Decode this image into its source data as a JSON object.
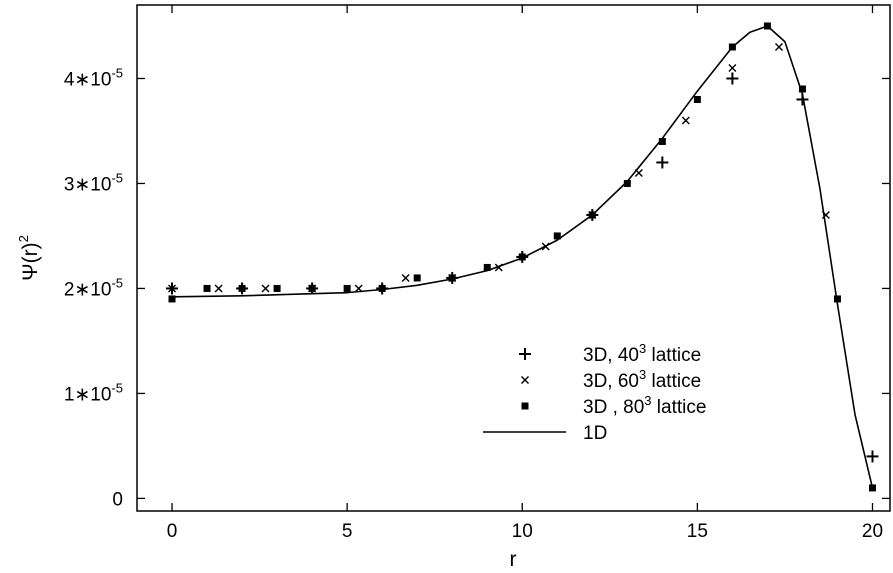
{
  "chart_data": {
    "type": "scatter",
    "title": "",
    "xlabel": "r",
    "ylabel": {
      "base": "Ψ(r)",
      "exp": "2"
    },
    "xlim": [
      -1,
      20.5
    ],
    "ylim": [
      -1.2e-06,
      4.7e-05
    ],
    "grid": false,
    "legend_position": "lower-center-right",
    "x_ticks": [
      {
        "value": 0,
        "label": "0"
      },
      {
        "value": 5,
        "label": "5"
      },
      {
        "value": 10,
        "label": "10"
      },
      {
        "value": 15,
        "label": "15"
      },
      {
        "value": 20,
        "label": "20"
      }
    ],
    "y_ticks": [
      {
        "value": 0,
        "label": "0"
      },
      {
        "value": 1e-05,
        "base": "1∗10",
        "exp": "-5"
      },
      {
        "value": 2e-05,
        "base": "2∗10",
        "exp": "-5"
      },
      {
        "value": 3e-05,
        "base": "3∗10",
        "exp": "-5"
      },
      {
        "value": 4e-05,
        "base": "4∗10",
        "exp": "-5"
      }
    ],
    "series": [
      {
        "name": "3D, 40^3 lattice",
        "label_parts": {
          "pre": "3D, 40",
          "sup": "3",
          "post": " lattice"
        },
        "marker": "plus",
        "points": [
          [
            0,
            2e-05
          ],
          [
            2,
            2e-05
          ],
          [
            4,
            2e-05
          ],
          [
            6,
            2e-05
          ],
          [
            8,
            2.1e-05
          ],
          [
            10,
            2.3e-05
          ],
          [
            12,
            2.7e-05
          ],
          [
            14,
            3.2e-05
          ],
          [
            16,
            4e-05
          ],
          [
            18,
            3.8e-05
          ],
          [
            20,
            4e-06
          ]
        ]
      },
      {
        "name": "3D, 60^3 lattice",
        "label_parts": {
          "pre": "3D, 60",
          "sup": "3",
          "post": " lattice"
        },
        "marker": "cross",
        "points": [
          [
            0,
            2e-05
          ],
          [
            1.33,
            2e-05
          ],
          [
            2.67,
            2e-05
          ],
          [
            4,
            2e-05
          ],
          [
            5.33,
            2e-05
          ],
          [
            6.67,
            2.1e-05
          ],
          [
            8,
            2.1e-05
          ],
          [
            9.33,
            2.2e-05
          ],
          [
            10.67,
            2.4e-05
          ],
          [
            12,
            2.7e-05
          ],
          [
            13.33,
            3.1e-05
          ],
          [
            14.67,
            3.6e-05
          ],
          [
            16,
            4.1e-05
          ],
          [
            17.33,
            4.3e-05
          ],
          [
            18.67,
            2.7e-05
          ]
        ]
      },
      {
        "name": "3D , 80^3 lattice",
        "label_parts": {
          "pre": "3D , 80",
          "sup": "3",
          "post": " lattice"
        },
        "marker": "square",
        "points": [
          [
            0,
            1.9e-05
          ],
          [
            1,
            2e-05
          ],
          [
            2,
            2e-05
          ],
          [
            3,
            2e-05
          ],
          [
            4,
            2e-05
          ],
          [
            5,
            2e-05
          ],
          [
            6,
            2e-05
          ],
          [
            7,
            2.1e-05
          ],
          [
            8,
            2.1e-05
          ],
          [
            9,
            2.2e-05
          ],
          [
            10,
            2.3e-05
          ],
          [
            11,
            2.5e-05
          ],
          [
            12,
            2.7e-05
          ],
          [
            13,
            3e-05
          ],
          [
            14,
            3.4e-05
          ],
          [
            15,
            3.8e-05
          ],
          [
            16,
            4.3e-05
          ],
          [
            17,
            4.5e-05
          ],
          [
            18,
            3.9e-05
          ],
          [
            19,
            1.9e-05
          ],
          [
            20,
            1e-06
          ]
        ]
      },
      {
        "name": "1D",
        "label_parts": {
          "pre": "1D",
          "sup": "",
          "post": ""
        },
        "marker": "line",
        "points": [
          [
            0,
            1.92e-05
          ],
          [
            2,
            1.93e-05
          ],
          [
            4,
            1.95e-05
          ],
          [
            5,
            1.96e-05
          ],
          [
            6,
            1.99e-05
          ],
          [
            7,
            2.03e-05
          ],
          [
            8,
            2.09e-05
          ],
          [
            9,
            2.17e-05
          ],
          [
            10,
            2.29e-05
          ],
          [
            11,
            2.46e-05
          ],
          [
            12,
            2.7e-05
          ],
          [
            13,
            3.02e-05
          ],
          [
            14,
            3.43e-05
          ],
          [
            15,
            3.88e-05
          ],
          [
            16,
            4.3e-05
          ],
          [
            16.5,
            4.44e-05
          ],
          [
            17,
            4.5e-05
          ],
          [
            17.5,
            4.35e-05
          ],
          [
            18,
            3.85e-05
          ],
          [
            18.5,
            2.95e-05
          ],
          [
            19,
            1.85e-05
          ],
          [
            19.5,
            8e-06
          ],
          [
            20,
            1e-06
          ]
        ]
      }
    ]
  }
}
